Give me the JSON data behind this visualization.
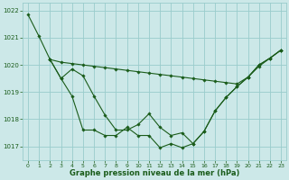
{
  "bg_color": "#cce8e8",
  "grid_color": "#99cccc",
  "line_color": "#1a5c1a",
  "xlabel": "Graphe pression niveau de la mer (hPa)",
  "ylim": [
    1016.5,
    1022.3
  ],
  "xlim": [
    -0.5,
    23.5
  ],
  "yticks": [
    1017,
    1018,
    1019,
    1020,
    1021,
    1022
  ],
  "xticks": [
    0,
    1,
    2,
    3,
    4,
    5,
    6,
    7,
    8,
    9,
    10,
    11,
    12,
    13,
    14,
    15,
    16,
    17,
    18,
    19,
    20,
    21,
    22,
    23
  ],
  "line1_x": [
    0,
    1,
    2,
    3,
    4,
    5,
    6,
    7,
    8,
    9,
    10,
    11,
    12,
    13,
    14,
    15,
    16,
    17,
    18,
    19,
    20,
    21,
    22,
    23
  ],
  "line1_y": [
    1021.85,
    1021.05,
    1020.2,
    1020.1,
    1020.05,
    1020.0,
    1019.95,
    1019.9,
    1019.85,
    1019.8,
    1019.75,
    1019.7,
    1019.65,
    1019.6,
    1019.55,
    1019.5,
    1019.45,
    1019.4,
    1019.35,
    1019.3,
    1019.55,
    1019.95,
    1020.25,
    1020.55
  ],
  "line2_x": [
    2,
    3,
    4,
    5,
    6,
    7,
    8,
    9,
    10,
    11,
    12,
    13,
    14,
    15,
    16,
    17,
    18,
    19,
    20,
    21,
    22,
    23
  ],
  "line2_y": [
    1020.2,
    1019.5,
    1019.85,
    1019.6,
    1018.85,
    1018.15,
    1017.6,
    1017.6,
    1017.8,
    1018.2,
    1017.7,
    1017.4,
    1017.5,
    1017.1,
    1017.55,
    1018.3,
    1018.8,
    1019.2,
    1019.55,
    1020.0,
    1020.25,
    1020.55
  ],
  "line3_x": [
    2,
    3,
    4,
    5,
    6,
    7,
    8,
    9,
    10,
    11,
    12,
    13,
    14,
    15,
    16,
    17,
    18,
    19,
    20,
    21,
    22,
    23
  ],
  "line3_y": [
    1020.2,
    1019.5,
    1018.85,
    1017.6,
    1017.6,
    1017.4,
    1017.4,
    1017.7,
    1017.4,
    1017.4,
    1016.95,
    1017.1,
    1016.95,
    1017.1,
    1017.55,
    1018.3,
    1018.8,
    1019.2,
    1019.55,
    1020.0,
    1020.25,
    1020.55
  ]
}
